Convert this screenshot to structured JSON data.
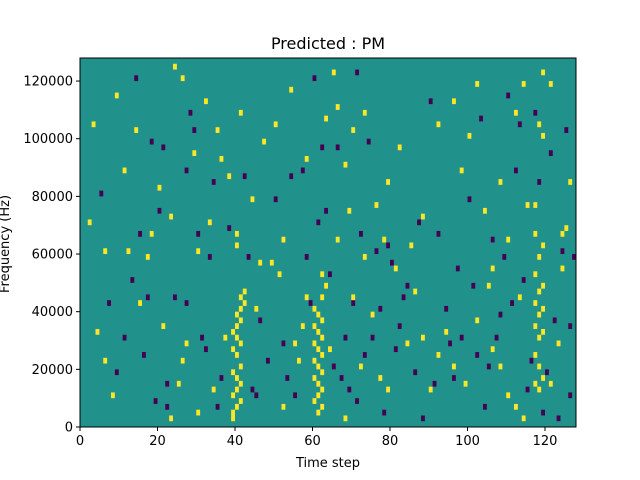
{
  "chart_data": {
    "type": "heatmap",
    "title": "Predicted : PM",
    "xlabel": "Time step",
    "ylabel": "Frequency (Hz)",
    "xlim": [
      0,
      128
    ],
    "ylim": [
      0,
      128000
    ],
    "x_ticks": [
      0,
      20,
      40,
      60,
      80,
      100,
      120
    ],
    "y_ticks": [
      0,
      20000,
      40000,
      60000,
      80000,
      100000,
      120000
    ],
    "y_tick_labels": [
      "0",
      "20000",
      "40000",
      "60000",
      "80000",
      "100000",
      "120000"
    ],
    "grid": false,
    "colors": {
      "background": "#21918c",
      "high": "#fde725",
      "low": "#440154"
    },
    "value_levels": {
      "background": 0,
      "high": 1,
      "low": -1
    },
    "high_cells": [
      [
        39,
        2000
      ],
      [
        39,
        4000
      ],
      [
        40,
        6000
      ],
      [
        41,
        8000
      ],
      [
        39,
        10000
      ],
      [
        40,
        12000
      ],
      [
        41,
        14000
      ],
      [
        40,
        16000
      ],
      [
        39,
        18000
      ],
      [
        41,
        20000
      ],
      [
        40,
        24000
      ],
      [
        39,
        26000
      ],
      [
        41,
        28000
      ],
      [
        40,
        30000
      ],
      [
        39,
        32000
      ],
      [
        40,
        34000
      ],
      [
        41,
        36000
      ],
      [
        40,
        38000
      ],
      [
        41,
        40000
      ],
      [
        42,
        42000
      ],
      [
        41,
        44000
      ],
      [
        42,
        46000
      ],
      [
        40,
        62000
      ],
      [
        40,
        66000
      ],
      [
        61,
        4000
      ],
      [
        62,
        6000
      ],
      [
        60,
        8000
      ],
      [
        61,
        10000
      ],
      [
        62,
        12000
      ],
      [
        61,
        14000
      ],
      [
        60,
        16000
      ],
      [
        62,
        18000
      ],
      [
        61,
        20000
      ],
      [
        60,
        22000
      ],
      [
        62,
        24000
      ],
      [
        61,
        26000
      ],
      [
        60,
        28000
      ],
      [
        62,
        30000
      ],
      [
        61,
        32000
      ],
      [
        60,
        34000
      ],
      [
        62,
        36000
      ],
      [
        61,
        38000
      ],
      [
        60,
        40000
      ],
      [
        62,
        44000
      ],
      [
        63,
        48000
      ],
      [
        62,
        52000
      ],
      [
        118,
        12000
      ],
      [
        117,
        14000
      ],
      [
        119,
        16000
      ],
      [
        118,
        20000
      ],
      [
        117,
        24000
      ],
      [
        118,
        30000
      ],
      [
        119,
        32000
      ],
      [
        117,
        34000
      ],
      [
        118,
        38000
      ],
      [
        119,
        40000
      ],
      [
        117,
        42000
      ],
      [
        118,
        46000
      ],
      [
        119,
        48000
      ],
      [
        117,
        52000
      ],
      [
        118,
        58000
      ],
      [
        119,
        62000
      ],
      [
        117,
        66000
      ],
      [
        117,
        76000
      ],
      [
        119,
        100000
      ],
      [
        118,
        104000
      ],
      [
        119,
        122000
      ],
      [
        23,
        2000
      ],
      [
        25,
        14000
      ],
      [
        26,
        22000
      ],
      [
        27,
        28000
      ],
      [
        30,
        4000
      ],
      [
        34,
        12000
      ],
      [
        37,
        30000
      ],
      [
        45,
        40000
      ],
      [
        46,
        56000
      ],
      [
        51,
        52000
      ],
      [
        52,
        6000
      ],
      [
        56,
        22000
      ],
      [
        57,
        34000
      ],
      [
        58,
        44000
      ],
      [
        64,
        26000
      ],
      [
        66,
        64000
      ],
      [
        68,
        2000
      ],
      [
        70,
        44000
      ],
      [
        72,
        20000
      ],
      [
        75,
        38000
      ],
      [
        77,
        16000
      ],
      [
        79,
        12000
      ],
      [
        84,
        28000
      ],
      [
        88,
        30000
      ],
      [
        92,
        24000
      ],
      [
        96,
        20000
      ],
      [
        99,
        14000
      ],
      [
        102,
        36000
      ],
      [
        105,
        48000
      ],
      [
        106,
        26000
      ],
      [
        108,
        20000
      ],
      [
        110,
        10000
      ],
      [
        112,
        6000
      ],
      [
        114,
        2000
      ],
      [
        121,
        14000
      ],
      [
        123,
        28000
      ],
      [
        124,
        54000
      ],
      [
        125,
        68000
      ],
      [
        114,
        118000
      ],
      [
        112,
        108000
      ],
      [
        108,
        84000
      ],
      [
        104,
        74000
      ],
      [
        100,
        100000
      ],
      [
        96,
        112000
      ],
      [
        92,
        104000
      ],
      [
        88,
        72000
      ],
      [
        85,
        62000
      ],
      [
        82,
        96000
      ],
      [
        79,
        84000
      ],
      [
        76,
        76000
      ],
      [
        73,
        108000
      ],
      [
        70,
        102000
      ],
      [
        68,
        90000
      ],
      [
        66,
        110000
      ],
      [
        63,
        106000
      ],
      [
        58,
        92000
      ],
      [
        54,
        116000
      ],
      [
        50,
        104000
      ],
      [
        47,
        98000
      ],
      [
        44,
        78000
      ],
      [
        41,
        108000
      ],
      [
        38,
        86000
      ],
      [
        35,
        102000
      ],
      [
        32,
        112000
      ],
      [
        29,
        94000
      ],
      [
        26,
        120000
      ],
      [
        23,
        72000
      ],
      [
        20,
        82000
      ],
      [
        17,
        58000
      ],
      [
        14,
        102000
      ],
      [
        11,
        88000
      ],
      [
        9,
        114000
      ],
      [
        6,
        60000
      ],
      [
        4,
        32000
      ],
      [
        3,
        104000
      ],
      [
        2,
        70000
      ],
      [
        6,
        22000
      ],
      [
        8,
        10000
      ],
      [
        12,
        60000
      ],
      [
        15,
        42000
      ],
      [
        18,
        66000
      ],
      [
        21,
        34000
      ],
      [
        24,
        124000
      ],
      [
        30,
        60000
      ],
      [
        33,
        70000
      ],
      [
        36,
        92000
      ],
      [
        49,
        56000
      ],
      [
        52,
        64000
      ],
      [
        55,
        28000
      ],
      [
        65,
        122000
      ],
      [
        69,
        74000
      ],
      [
        73,
        58000
      ],
      [
        78,
        64000
      ],
      [
        81,
        54000
      ],
      [
        86,
        46000
      ],
      [
        90,
        12000
      ],
      [
        94,
        32000
      ],
      [
        98,
        88000
      ],
      [
        102,
        118000
      ],
      [
        106,
        54000
      ],
      [
        110,
        64000
      ],
      [
        113,
        44000
      ],
      [
        115,
        76000
      ],
      [
        121,
        118000
      ],
      [
        124,
        66000
      ],
      [
        126,
        84000
      ]
    ],
    "low_cells": [
      [
        14,
        120000
      ],
      [
        16,
        24000
      ],
      [
        18,
        98000
      ],
      [
        20,
        74000
      ],
      [
        22,
        14000
      ],
      [
        24,
        44000
      ],
      [
        27,
        88000
      ],
      [
        28,
        108000
      ],
      [
        30,
        66000
      ],
      [
        32,
        26000
      ],
      [
        34,
        84000
      ],
      [
        36,
        16000
      ],
      [
        38,
        68000
      ],
      [
        43,
        58000
      ],
      [
        44,
        12000
      ],
      [
        46,
        36000
      ],
      [
        48,
        22000
      ],
      [
        50,
        78000
      ],
      [
        52,
        28000
      ],
      [
        53,
        16000
      ],
      [
        55,
        10000
      ],
      [
        57,
        88000
      ],
      [
        58,
        58000
      ],
      [
        59,
        42000
      ],
      [
        63,
        74000
      ],
      [
        64,
        52000
      ],
      [
        65,
        20000
      ],
      [
        66,
        96000
      ],
      [
        67,
        16000
      ],
      [
        68,
        30000
      ],
      [
        69,
        12000
      ],
      [
        70,
        42000
      ],
      [
        71,
        8000
      ],
      [
        72,
        66000
      ],
      [
        74,
        98000
      ],
      [
        75,
        30000
      ],
      [
        76,
        60000
      ],
      [
        77,
        40000
      ],
      [
        78,
        4000
      ],
      [
        80,
        56000
      ],
      [
        81,
        26000
      ],
      [
        82,
        34000
      ],
      [
        84,
        48000
      ],
      [
        86,
        18000
      ],
      [
        88,
        2000
      ],
      [
        90,
        112000
      ],
      [
        92,
        66000
      ],
      [
        94,
        40000
      ],
      [
        96,
        16000
      ],
      [
        98,
        30000
      ],
      [
        100,
        78000
      ],
      [
        102,
        24000
      ],
      [
        104,
        6000
      ],
      [
        106,
        64000
      ],
      [
        108,
        38000
      ],
      [
        110,
        114000
      ],
      [
        112,
        88000
      ],
      [
        114,
        50000
      ],
      [
        116,
        22000
      ],
      [
        118,
        84000
      ],
      [
        120,
        18000
      ],
      [
        122,
        36000
      ],
      [
        124,
        60000
      ],
      [
        126,
        10000
      ],
      [
        127,
        58000
      ],
      [
        5,
        80000
      ],
      [
        7,
        42000
      ],
      [
        9,
        18000
      ],
      [
        11,
        30000
      ],
      [
        13,
        50000
      ],
      [
        15,
        66000
      ],
      [
        17,
        44000
      ],
      [
        19,
        8000
      ],
      [
        21,
        96000
      ],
      [
        22,
        6000
      ],
      [
        27,
        42000
      ],
      [
        29,
        102000
      ],
      [
        31,
        30000
      ],
      [
        33,
        58000
      ],
      [
        35,
        6000
      ],
      [
        42,
        86000
      ],
      [
        45,
        10000
      ],
      [
        54,
        86000
      ],
      [
        60,
        120000
      ],
      [
        61,
        70000
      ],
      [
        62,
        96000
      ],
      [
        71,
        122000
      ],
      [
        73,
        24000
      ],
      [
        79,
        62000
      ],
      [
        83,
        44000
      ],
      [
        87,
        70000
      ],
      [
        91,
        14000
      ],
      [
        95,
        28000
      ],
      [
        97,
        54000
      ],
      [
        101,
        48000
      ],
      [
        103,
        106000
      ],
      [
        105,
        20000
      ],
      [
        107,
        30000
      ],
      [
        109,
        58000
      ],
      [
        111,
        42000
      ],
      [
        113,
        104000
      ],
      [
        115,
        12000
      ],
      [
        117,
        108000
      ],
      [
        119,
        4000
      ],
      [
        121,
        94000
      ],
      [
        123,
        2000
      ],
      [
        125,
        102000
      ],
      [
        126,
        34000
      ]
    ]
  }
}
